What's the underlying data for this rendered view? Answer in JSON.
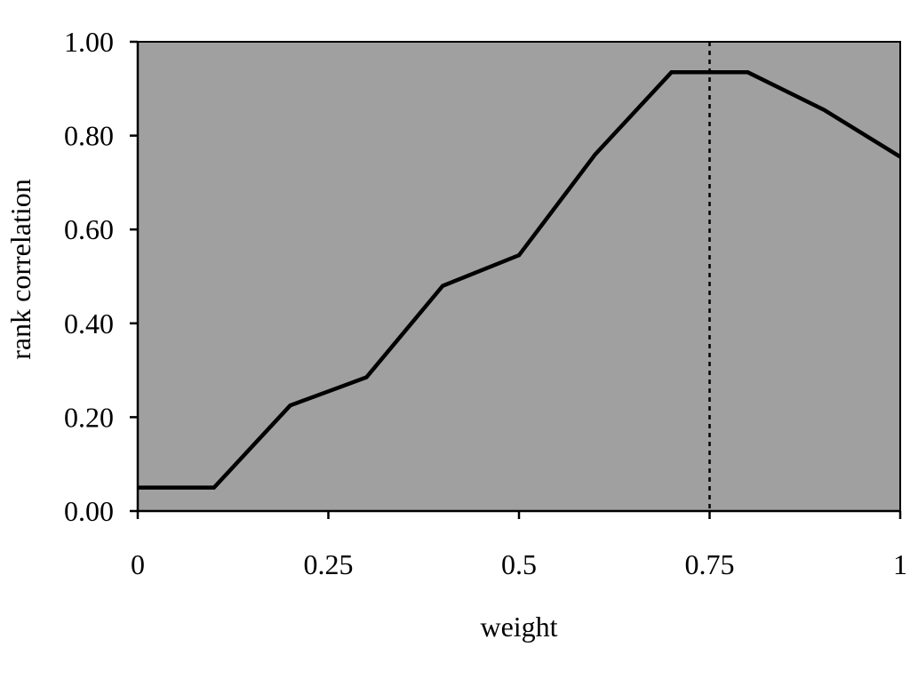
{
  "chart_data": {
    "type": "line",
    "title": "",
    "xlabel": "weight",
    "ylabel": "rank correlation",
    "xlim": [
      0,
      1
    ],
    "ylim": [
      0,
      1
    ],
    "x_ticks": [
      0,
      0.25,
      0.5,
      0.75,
      1
    ],
    "x_tick_labels": [
      "0",
      "0.25",
      "0.5",
      "0.75",
      "1"
    ],
    "y_ticks": [
      0,
      0.2,
      0.4,
      0.6,
      0.8,
      1.0
    ],
    "y_tick_labels": [
      "0.00",
      "0.20",
      "0.40",
      "0.60",
      "0.80",
      "1.00"
    ],
    "grid": false,
    "legend": "none",
    "plot_background": "#a0a0a0",
    "line_color": "#000000",
    "series": [
      {
        "x": [
          0,
          0.1,
          0.2,
          0.3,
          0.4,
          0.5,
          0.6,
          0.7,
          0.8,
          0.9,
          1.0
        ],
        "values": [
          0.05,
          0.05,
          0.225,
          0.285,
          0.48,
          0.545,
          0.76,
          0.935,
          0.935,
          0.855,
          0.755
        ]
      }
    ],
    "reference_lines": [
      {
        "orientation": "vertical",
        "x": 0.75,
        "style": "dotted"
      }
    ]
  }
}
